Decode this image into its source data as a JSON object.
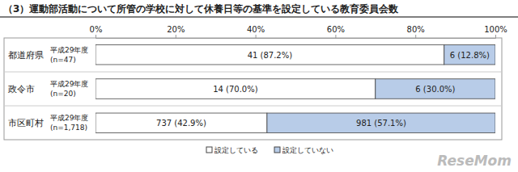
{
  "chart_data": {
    "type": "bar",
    "orientation": "horizontal",
    "stacked": true,
    "data_labels": true,
    "title": "（3）運動部活動について所管の学校に対して休養日等の基準を設定している教育委員会数",
    "categories": [
      "都道府県",
      "政令市",
      "市区町村"
    ],
    "category_notes": [
      [
        "平成29年度",
        "(n=47)"
      ],
      [
        "平成29年度",
        "(n=20)"
      ],
      [
        "平成29年度",
        "(n=1,718)"
      ]
    ],
    "series": [
      {
        "name": "設定している",
        "color": "#ffffff",
        "values": [
          87.2,
          70.0,
          42.9
        ],
        "value_labels": [
          "41 (87.2%)",
          "14 (70.0%)",
          "737 (42.9%)"
        ]
      },
      {
        "name": "設定していない",
        "color": "#b8cce8",
        "values": [
          12.8,
          30.0,
          57.1
        ],
        "value_labels": [
          "6 (12.8%)",
          "6 (30.0%)",
          "981 (57.1%)"
        ]
      }
    ],
    "xlim": [
      0,
      100
    ],
    "xticks": [
      {
        "value": 0,
        "label": "0%"
      },
      {
        "value": 20,
        "label": "20%"
      },
      {
        "value": 40,
        "label": "40%"
      },
      {
        "value": 60,
        "label": "60%"
      },
      {
        "value": 80,
        "label": "80%"
      },
      {
        "value": 100,
        "label": "100%"
      }
    ],
    "grid": false,
    "legend": "bottom",
    "annotations": [
      "ReseMom"
    ]
  }
}
